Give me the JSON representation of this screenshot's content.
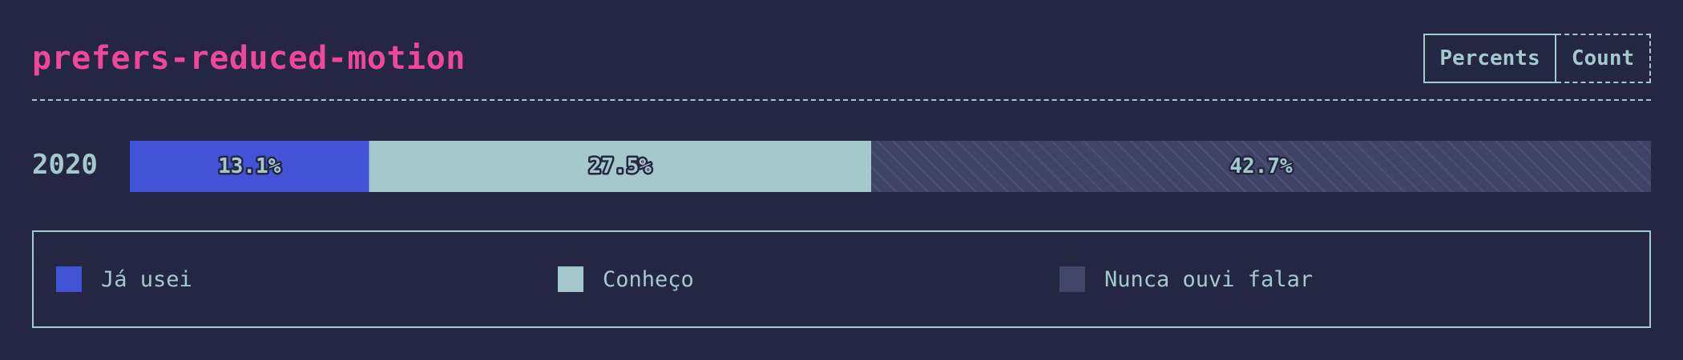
{
  "header": {
    "title": "prefers-reduced-motion",
    "toggles": [
      "Percents",
      "Count"
    ],
    "active_toggle": "Percents"
  },
  "colors": {
    "background": "#232742",
    "title": "#f0479b",
    "text": "#a5c8cc",
    "used": "#4153d6",
    "know": "#a5c8cc",
    "never": "#424769"
  },
  "chart_data": {
    "type": "bar",
    "orientation": "horizontal-stacked",
    "categories": [
      "2020"
    ],
    "series": [
      {
        "name": "Já usei",
        "values": [
          13.1
        ],
        "label": "13.1%",
        "color": "#4153d6"
      },
      {
        "name": "Conheço",
        "values": [
          27.5
        ],
        "label": "27.5%",
        "color": "#a5c8cc"
      },
      {
        "name": "Nunca ouvi falar",
        "values": [
          42.7
        ],
        "label": "42.7%",
        "color": "#424769",
        "pattern": "hatched"
      }
    ],
    "legend_position": "bottom"
  }
}
